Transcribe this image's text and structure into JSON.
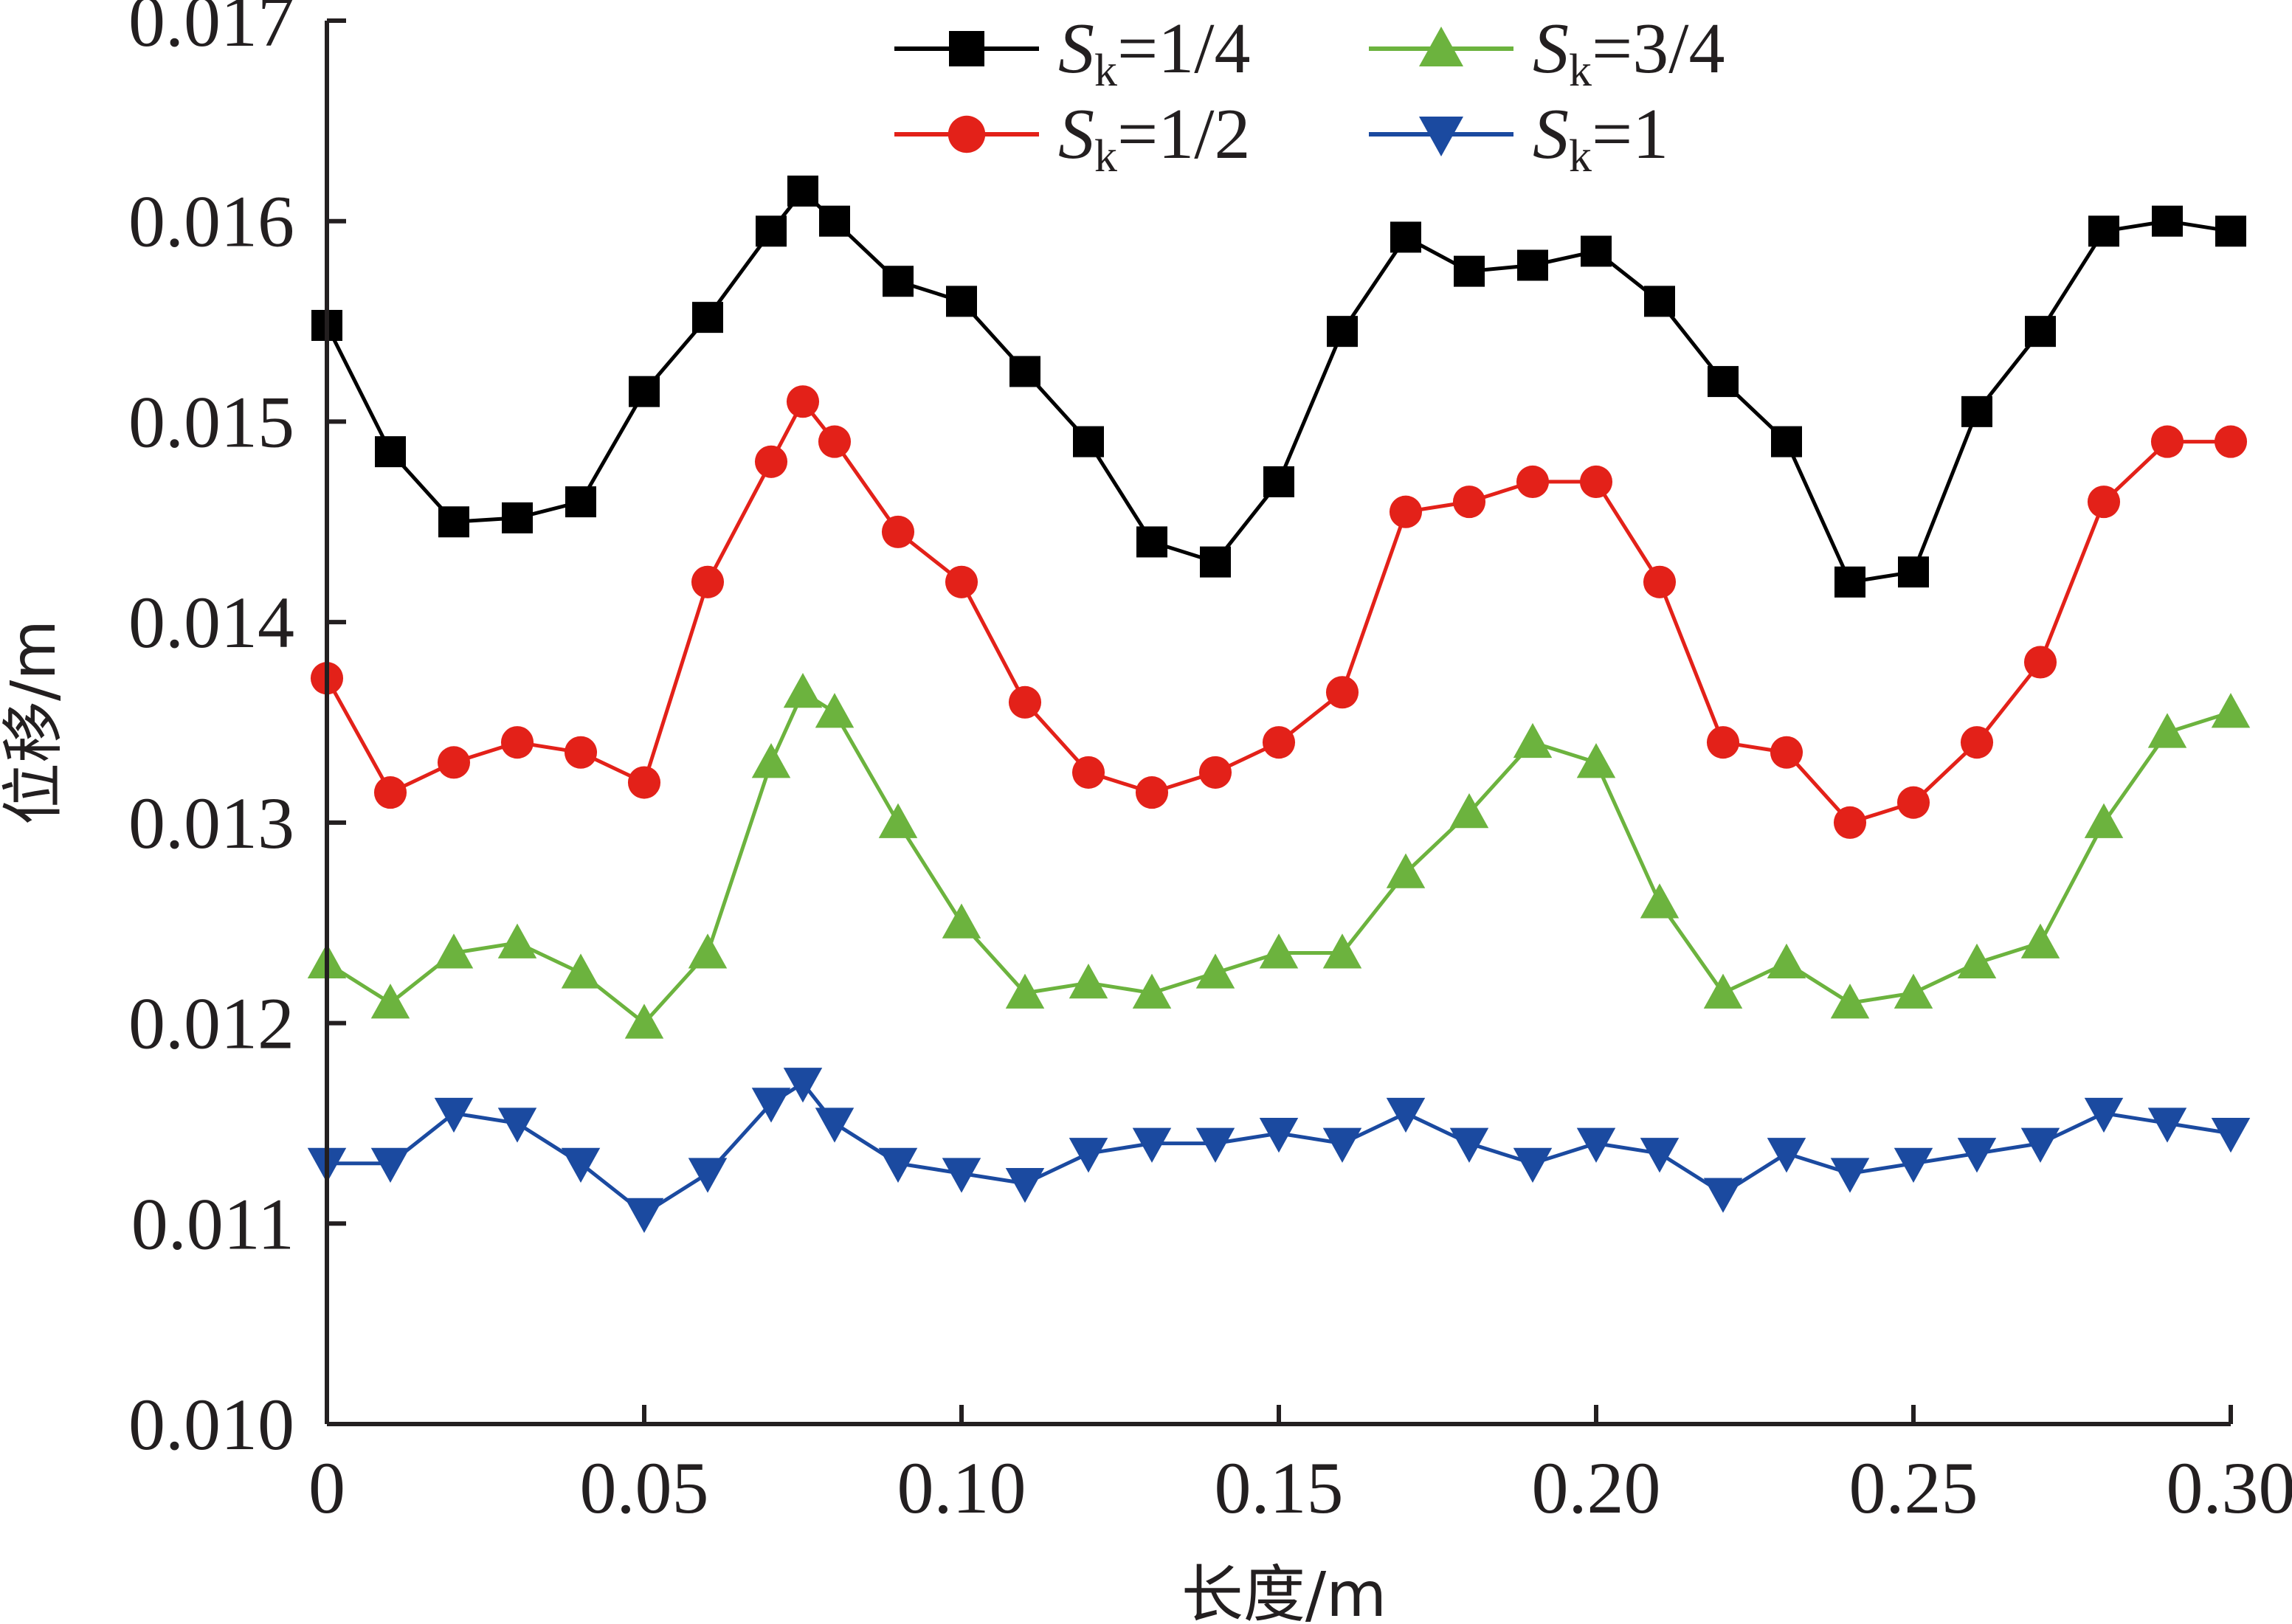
{
  "chart_data": {
    "type": "line",
    "title": "",
    "xlabel": "长度/m",
    "ylabel": "位移/m",
    "xlim": [
      0,
      0.3
    ],
    "ylim": [
      0.01,
      0.017
    ],
    "x_ticks": [
      0,
      0.05,
      0.1,
      0.15,
      0.2,
      0.25,
      0.3
    ],
    "x_tick_labels": [
      "0",
      "0.05",
      "0.10",
      "0.15",
      "0.20",
      "0.25",
      "0.30"
    ],
    "y_ticks": [
      0.01,
      0.011,
      0.012,
      0.013,
      0.014,
      0.015,
      0.016,
      0.017
    ],
    "y_tick_labels": [
      "0.010",
      "0.011",
      "0.012",
      "0.013",
      "0.014",
      "0.015",
      "0.016",
      "0.017"
    ],
    "grid": false,
    "legend_position": "top-center",
    "x": [
      0,
      0.01,
      0.02,
      0.03,
      0.04,
      0.05,
      0.06,
      0.07,
      0.075,
      0.08,
      0.09,
      0.1,
      0.11,
      0.12,
      0.13,
      0.14,
      0.15,
      0.16,
      0.17,
      0.18,
      0.19,
      0.2,
      0.21,
      0.22,
      0.23,
      0.24,
      0.25,
      0.26,
      0.27,
      0.28,
      0.29,
      0.3
    ],
    "series": [
      {
        "name": "Sk=1/4",
        "legend_base": "S",
        "legend_sub": "k",
        "legend_value": "=1/4",
        "color": "#000000",
        "marker": "square",
        "values": [
          0.01548,
          0.01485,
          0.0145,
          0.01452,
          0.0146,
          0.01515,
          0.01552,
          0.01595,
          0.01615,
          0.016,
          0.0157,
          0.0156,
          0.01525,
          0.0149,
          0.0144,
          0.0143,
          0.0147,
          0.01545,
          0.01592,
          0.01575,
          0.01578,
          0.01585,
          0.0156,
          0.0152,
          0.0149,
          0.0142,
          0.01425,
          0.01505,
          0.01545,
          0.01595,
          0.016,
          0.01595
        ]
      },
      {
        "name": "Sk=1/2",
        "legend_base": "S",
        "legend_sub": "k",
        "legend_value": "=1/2",
        "color": "#e32119",
        "marker": "circle",
        "values": [
          0.01372,
          0.01315,
          0.0133,
          0.0134,
          0.01335,
          0.0132,
          0.0142,
          0.0148,
          0.0151,
          0.0149,
          0.01445,
          0.0142,
          0.0136,
          0.01325,
          0.01315,
          0.01325,
          0.0134,
          0.01365,
          0.01455,
          0.0146,
          0.0147,
          0.0147,
          0.0142,
          0.0134,
          0.01335,
          0.013,
          0.0131,
          0.0134,
          0.0138,
          0.0146,
          0.0149,
          0.0149
        ]
      },
      {
        "name": "Sk=3/4",
        "legend_base": "S",
        "legend_sub": "k",
        "legend_value": "=3/4",
        "color": "#6cb33e",
        "marker": "triangle-up",
        "values": [
          0.0123,
          0.0121,
          0.01235,
          0.0124,
          0.01225,
          0.012,
          0.01235,
          0.0133,
          0.01365,
          0.01355,
          0.013,
          0.0125,
          0.01215,
          0.0122,
          0.01215,
          0.01225,
          0.01235,
          0.01235,
          0.01275,
          0.01305,
          0.0134,
          0.0133,
          0.0126,
          0.01215,
          0.0123,
          0.0121,
          0.01215,
          0.0123,
          0.0124,
          0.013,
          0.01345,
          0.01355
        ]
      },
      {
        "name": "Sk=1",
        "legend_base": "S",
        "legend_sub": "k",
        "legend_value": "=1",
        "color": "#1b4aa0",
        "marker": "triangle-down",
        "values": [
          0.0113,
          0.0113,
          0.01155,
          0.0115,
          0.0113,
          0.01105,
          0.01125,
          0.0116,
          0.0117,
          0.0115,
          0.0113,
          0.01125,
          0.0112,
          0.01135,
          0.0114,
          0.0114,
          0.01145,
          0.0114,
          0.01155,
          0.0114,
          0.0113,
          0.0114,
          0.01135,
          0.01115,
          0.01135,
          0.01125,
          0.0113,
          0.01135,
          0.0114,
          0.01155,
          0.0115,
          0.01145
        ]
      }
    ]
  }
}
